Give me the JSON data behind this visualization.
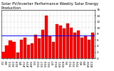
{
  "title": "Solar PV/Inverter Performance Weekly Solar Energy Production",
  "values": [
    2.1,
    4.2,
    5.8,
    5.5,
    1.8,
    6.2,
    6.8,
    4.5,
    5.0,
    7.8,
    6.5,
    9.5,
    14.2,
    7.2,
    5.5,
    11.2,
    10.8,
    9.8,
    11.5,
    10.2,
    8.5,
    9.2,
    6.8,
    7.5,
    6.2,
    8.5
  ],
  "avg": 7.5,
  "bar_color": "#ff0000",
  "avg_color": "#0000ff",
  "bg_color": "#ffffff",
  "grid_color": "#cccccc",
  "ylim": [
    0,
    16
  ],
  "yticks": [
    0,
    2,
    4,
    6,
    8,
    10,
    12,
    14,
    16
  ],
  "labels": [
    "3/1",
    "3/8",
    "3/15",
    "3/22",
    "3/29",
    "4/5",
    "4/12",
    "4/19",
    "4/26",
    "5/3",
    "5/10",
    "5/17",
    "5/24",
    "5/31",
    "6/7",
    "6/14",
    "6/21",
    "6/28",
    "7/5",
    "7/12",
    "7/19",
    "7/26",
    "8/2",
    "8/9",
    "8/16",
    "8/23"
  ],
  "title_fontsize": 3.8,
  "tick_fontsize": 3.0
}
